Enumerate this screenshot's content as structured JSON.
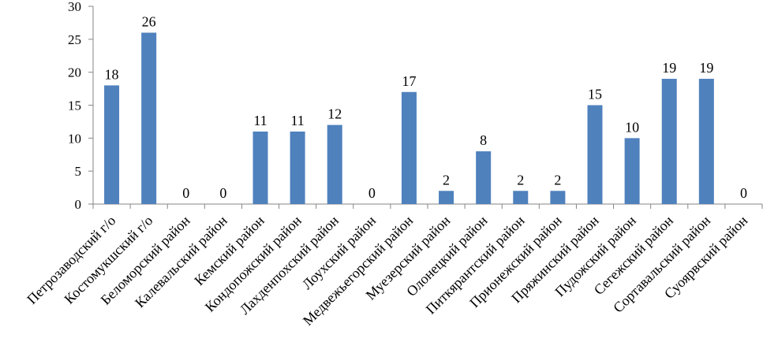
{
  "chart_data": {
    "type": "bar",
    "categories": [
      "Петрозаводский г/о",
      "Костомукшский г/о",
      "Беломорский район",
      "Калевальский район",
      "Кемский район",
      "Кондопожский район",
      "Лахденпохский район",
      "Лоухский район",
      "Медвежьегорский район",
      "Муезерский район",
      "Олонецкий район",
      "Питкярантский район",
      "Прионежский район",
      "Пряжинский район",
      "Пудожский район",
      "Сегежский район",
      "Сортавальский район",
      "Суоярвский район"
    ],
    "values": [
      18,
      26,
      0,
      0,
      11,
      11,
      12,
      0,
      17,
      2,
      8,
      2,
      2,
      15,
      10,
      19,
      19,
      0
    ],
    "ylim": [
      0,
      30
    ],
    "yticks": [
      0,
      5,
      10,
      15,
      20,
      25,
      30
    ],
    "grid": false,
    "legend": "none",
    "bar_color": "#4F81BD",
    "axis_color": "#868686"
  }
}
